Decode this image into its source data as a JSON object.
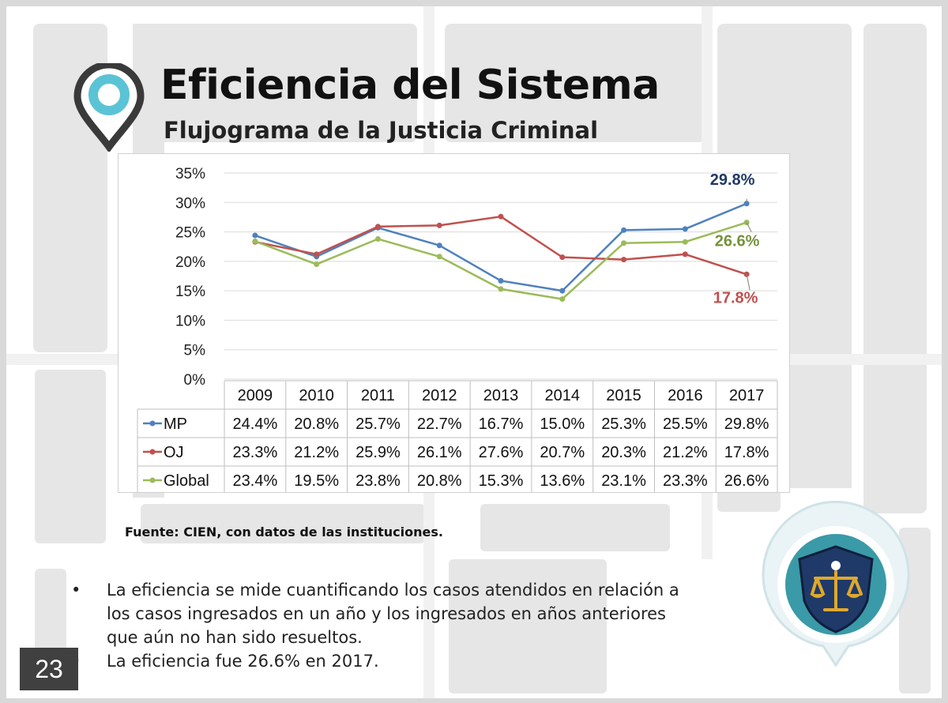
{
  "slide": {
    "title": "Eficiencia del Sistema",
    "subtitle": "Flujograma de la Justicia Criminal",
    "source": "Fuente: CIEN, con datos de las instituciones.",
    "bullets": [
      "La eficiencia se mide cuantificando los casos atendidos en relación a los casos ingresados en un año y los ingresados en años anteriores que aún no han sido resueltos.",
      "La eficiencia fue 26.6% en 2017."
    ],
    "bullet_glyph": "•",
    "page_number": "23",
    "icons": {
      "title": "map-pin-icon",
      "badge": "scales-of-justice-icon"
    }
  },
  "chart_data": {
    "type": "line",
    "categories": [
      "2009",
      "2010",
      "2011",
      "2012",
      "2013",
      "2014",
      "2015",
      "2016",
      "2017"
    ],
    "ylim": [
      0,
      35
    ],
    "yticks": [
      "0%",
      "5%",
      "10%",
      "15%",
      "20%",
      "25%",
      "30%",
      "35%"
    ],
    "ytick_values": [
      0,
      5,
      10,
      15,
      20,
      25,
      30,
      35
    ],
    "grid": true,
    "data_table": true,
    "series": [
      {
        "name": "MP",
        "color": "#4f81bd",
        "values": [
          24.4,
          20.8,
          25.7,
          22.7,
          16.7,
          15.0,
          25.3,
          25.5,
          29.8
        ],
        "labels": [
          "24.4%",
          "20.8%",
          "25.7%",
          "22.7%",
          "16.7%",
          "15.0%",
          "25.3%",
          "25.5%",
          "29.8%"
        ]
      },
      {
        "name": "OJ",
        "color": "#c0504d",
        "values": [
          23.3,
          21.2,
          25.9,
          26.1,
          27.6,
          20.7,
          20.3,
          21.2,
          17.8
        ],
        "labels": [
          "23.3%",
          "21.2%",
          "25.9%",
          "26.1%",
          "27.6%",
          "20.7%",
          "20.3%",
          "21.2%",
          "17.8%"
        ]
      },
      {
        "name": "Global",
        "color": "#9bbb59",
        "values": [
          23.4,
          19.5,
          23.8,
          20.8,
          15.3,
          13.6,
          23.1,
          23.3,
          26.6
        ],
        "labels": [
          "23.4%",
          "19.5%",
          "23.8%",
          "20.8%",
          "15.3%",
          "13.6%",
          "23.1%",
          "23.3%",
          "26.6%"
        ]
      }
    ],
    "annotations": [
      {
        "text": "29.8%",
        "series": "MP",
        "color": "#1f3864"
      },
      {
        "text": "26.6%",
        "series": "Global",
        "color": "#76923c"
      },
      {
        "text": "17.8%",
        "series": "OJ",
        "color": "#c0504d"
      }
    ]
  }
}
